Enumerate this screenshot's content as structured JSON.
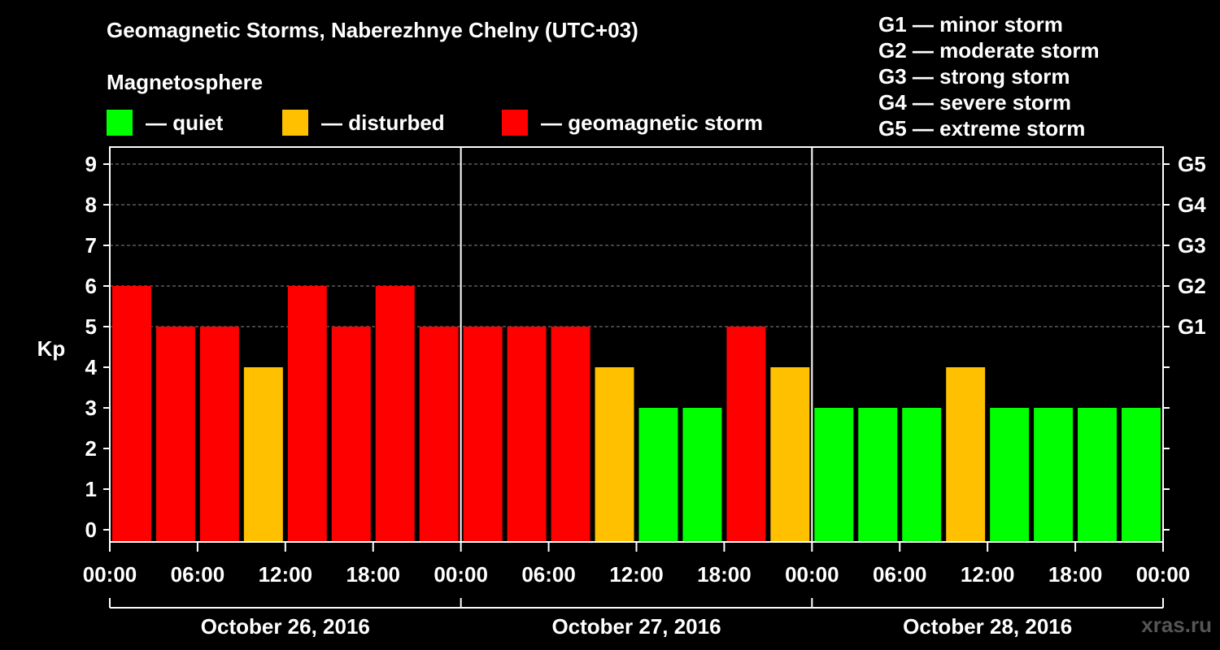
{
  "title": "Geomagnetic Storms, Naberezhnye Chelny (UTC+03)",
  "subtitle": "Magnetosphere",
  "legend": [
    {
      "label": "— quiet",
      "color": "#00ff00"
    },
    {
      "label": "— disturbed",
      "color": "#ffc000"
    },
    {
      "label": "— geomagnetic storm",
      "color": "#ff0000"
    }
  ],
  "g_legend": [
    "G1 — minor storm",
    "G2 — moderate storm",
    "G3 — strong storm",
    "G4 — severe storm",
    "G5 — extreme storm"
  ],
  "watermark": "xras.ru",
  "chart_data": {
    "type": "bar",
    "ylabel": "Kp",
    "ylim": [
      0,
      9
    ],
    "yticks": [
      "0",
      "1",
      "2",
      "3",
      "4",
      "5",
      "6",
      "7",
      "8",
      "9"
    ],
    "right_labels": [
      {
        "value": 5,
        "label": "G1"
      },
      {
        "value": 6,
        "label": "G2"
      },
      {
        "value": 7,
        "label": "G3"
      },
      {
        "value": 8,
        "label": "G4"
      },
      {
        "value": 9,
        "label": "G5"
      }
    ],
    "grid": "dashed horizontal at 5-9",
    "xtick_labels": [
      "00:00",
      "06:00",
      "12:00",
      "18:00",
      "00:00",
      "06:00",
      "12:00",
      "18:00",
      "00:00",
      "06:00",
      "12:00",
      "18:00",
      "00:00"
    ],
    "days": [
      "October 26, 2016",
      "October 27, 2016",
      "October 28, 2016"
    ],
    "values": [
      6,
      5,
      5,
      4,
      6,
      5,
      6,
      5,
      5,
      5,
      5,
      4,
      3,
      3,
      5,
      4,
      3,
      3,
      3,
      4,
      3,
      3,
      3,
      3
    ],
    "colors": [
      "#ff0000",
      "#ff0000",
      "#ff0000",
      "#ffc000",
      "#ff0000",
      "#ff0000",
      "#ff0000",
      "#ff0000",
      "#ff0000",
      "#ff0000",
      "#ff0000",
      "#ffc000",
      "#00ff00",
      "#00ff00",
      "#ff0000",
      "#ffc000",
      "#00ff00",
      "#00ff00",
      "#00ff00",
      "#ffc000",
      "#00ff00",
      "#00ff00",
      "#00ff00",
      "#00ff00"
    ]
  }
}
